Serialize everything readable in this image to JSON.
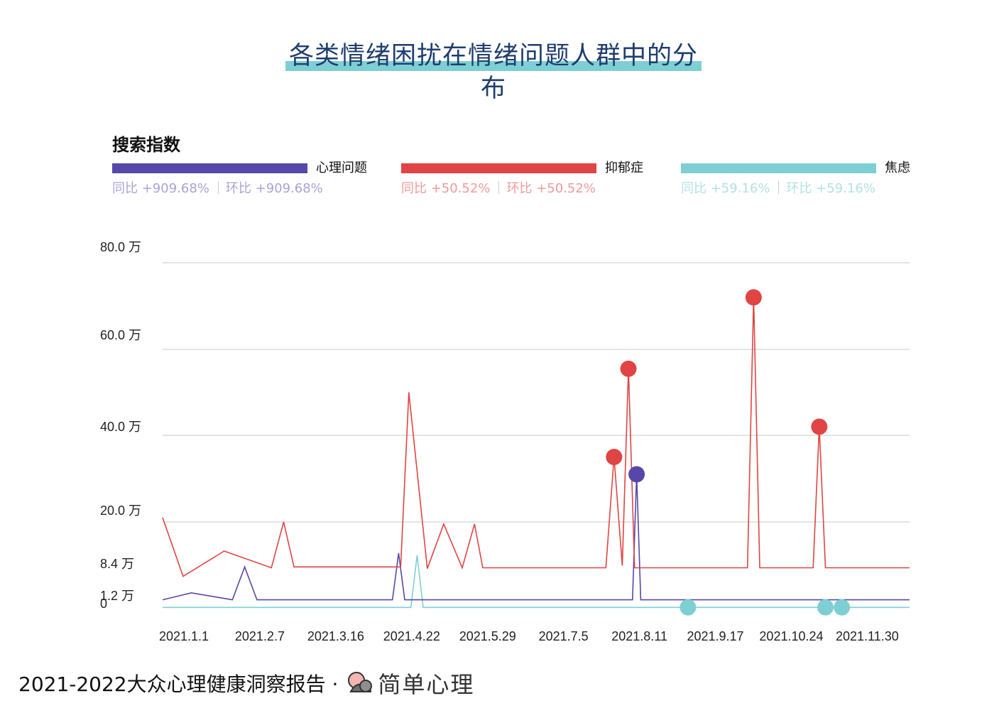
{
  "chart_data": {
    "type": "line",
    "title": "各类情绪困扰在情绪问题人群中的分布",
    "section_label": "搜索指数",
    "yticks": [
      {
        "value": 80.0,
        "label": "80.0 万"
      },
      {
        "value": 60.0,
        "label": "60.0 万"
      },
      {
        "value": 40.0,
        "label": "40.0 万"
      },
      {
        "value": 20.0,
        "label": "20.0 万"
      },
      {
        "value": 8.4,
        "label": "8.4 万"
      },
      {
        "value": 1.2,
        "label": "1.2 万"
      },
      {
        "value": 0,
        "label": "0"
      }
    ],
    "gridlines": [
      80.0,
      60.0,
      40.0,
      20.0
    ],
    "ylim": [
      0,
      80
    ],
    "xlim": [
      "2021-01-01",
      "2021-12-31"
    ],
    "xticks": [
      {
        "date": "2021-01-01",
        "label": "2021.1.1"
      },
      {
        "date": "2021-02-07",
        "label": "2021.2.7"
      },
      {
        "date": "2021-03-16",
        "label": "2021.3.16"
      },
      {
        "date": "2021-04-22",
        "label": "2021.4.22"
      },
      {
        "date": "2021-05-29",
        "label": "2021.5.29"
      },
      {
        "date": "2021-07-05",
        "label": "2021.7.5"
      },
      {
        "date": "2021-08-11",
        "label": "2021.8.11"
      },
      {
        "date": "2021-09-17",
        "label": "2021.9.17"
      },
      {
        "date": "2021-10-24",
        "label": "2021.10.24"
      },
      {
        "date": "2021-11-30",
        "label": "2021.11.30"
      }
    ],
    "series": [
      {
        "name": "心理问题",
        "color": "#5548a8",
        "yoy": "同比 +909.68%",
        "mom": "环比 +909.68%",
        "stats_color": "#a9a3d6",
        "points": [
          [
            "2021-01-01",
            1.6
          ],
          [
            "2021-01-15",
            3.2
          ],
          [
            "2021-02-04",
            1.6
          ],
          [
            "2021-02-10",
            9.2
          ],
          [
            "2021-02-16",
            1.6
          ],
          [
            "2021-04-23",
            1.6
          ],
          [
            "2021-04-26",
            12.5
          ],
          [
            "2021-04-29",
            1.6
          ],
          [
            "2021-08-18",
            1.6
          ],
          [
            "2021-08-20",
            31.0
          ],
          [
            "2021-08-22",
            1.6
          ],
          [
            "2021-12-31",
            1.6
          ]
        ],
        "markers": [
          [
            "2021-08-20",
            31.0
          ]
        ]
      },
      {
        "name": "抑郁症",
        "color": "#e04444",
        "yoy": "同比 +50.52%",
        "mom": "环比 +50.52%",
        "stats_color": "#f09a9a",
        "points": [
          [
            "2021-01-01",
            21.0
          ],
          [
            "2021-01-11",
            7.0
          ],
          [
            "2021-01-31",
            13.0
          ],
          [
            "2021-02-23",
            9.0
          ],
          [
            "2021-02-29",
            20.0
          ],
          [
            "2021-03-06",
            9.2
          ],
          [
            "2021-04-27",
            9.2
          ],
          [
            "2021-05-01",
            50.0
          ],
          [
            "2021-05-10",
            8.8
          ],
          [
            "2021-05-18",
            19.5
          ],
          [
            "2021-05-27",
            9.0
          ],
          [
            "2021-06-02",
            19.5
          ],
          [
            "2021-06-06",
            9.0
          ],
          [
            "2021-08-05",
            9.0
          ],
          [
            "2021-08-09",
            35.0
          ],
          [
            "2021-08-13",
            9.5
          ],
          [
            "2021-08-16",
            55.5
          ],
          [
            "2021-08-19",
            9.0
          ],
          [
            "2021-10-13",
            9.0
          ],
          [
            "2021-10-16",
            72.0
          ],
          [
            "2021-10-19",
            9.0
          ],
          [
            "2021-11-14",
            9.0
          ],
          [
            "2021-11-17",
            42.0
          ],
          [
            "2021-11-20",
            9.0
          ],
          [
            "2021-12-31",
            9.0
          ]
        ],
        "markers": [
          [
            "2021-08-09",
            35.0
          ],
          [
            "2021-08-16",
            55.5
          ],
          [
            "2021-10-16",
            72.0
          ],
          [
            "2021-11-17",
            42.0
          ]
        ]
      },
      {
        "name": "焦虑",
        "color": "#7ecfd4",
        "yoy": "同比 +59.16%",
        "mom": "环比 +59.16%",
        "stats_color": "#b0e2e5",
        "points": [
          [
            "2021-01-01",
            0.1
          ],
          [
            "2021-05-02",
            0.1
          ],
          [
            "2021-05-05",
            12.0
          ],
          [
            "2021-05-08",
            0.1
          ],
          [
            "2021-12-31",
            0.1
          ]
        ],
        "markers": [
          [
            "2021-09-14",
            0.1
          ],
          [
            "2021-11-20",
            0.1
          ],
          [
            "2021-11-28",
            0.1
          ]
        ]
      }
    ]
  },
  "footer": {
    "text": "2021-2022大众心理健康洞察报告 ·",
    "brand": "简单心理"
  }
}
